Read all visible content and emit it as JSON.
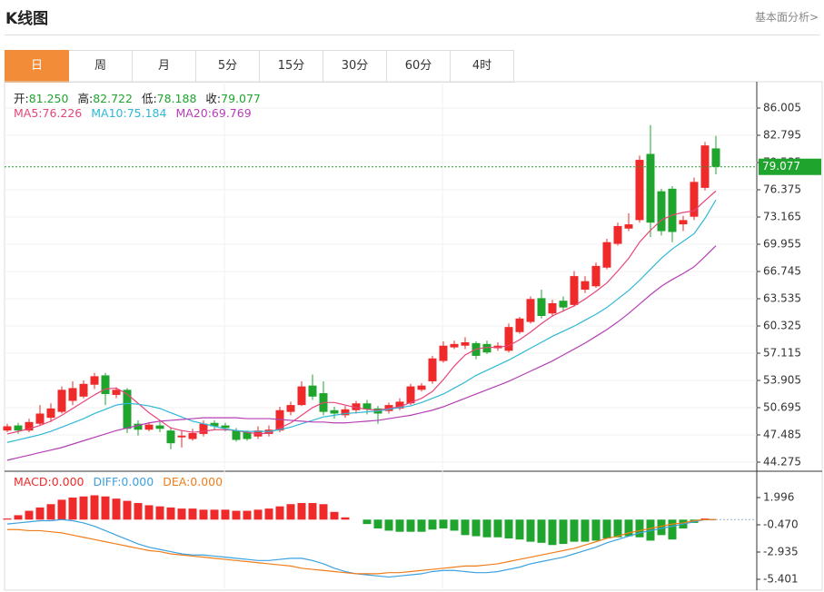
{
  "header": {
    "title": "K线图",
    "link": "基本面分析>"
  },
  "tabs": {
    "items": [
      "日",
      "周",
      "月",
      "5分",
      "15分",
      "30分",
      "60分",
      "4时"
    ],
    "active": 0
  },
  "chart_data": [
    {
      "type": "candlestick",
      "summary": [
        {
          "name": "开:",
          "value": {
            "value": 81.25,
            "label": "81.250"
          }
        },
        {
          "name": "高:",
          "value": 82.722
        },
        {
          "name": "低:",
          "value": 78.188
        },
        {
          "name": "收:",
          "value": 79.077
        }
      ],
      "up_color": "#ee2a2a",
      "down_color": "#1fa52d",
      "open": [
        48.0,
        48.6,
        48.0,
        48.8,
        49.5,
        50.2,
        51.5,
        52.0,
        53.4,
        54.5,
        52.2,
        52.8,
        48.8,
        48.1,
        48.6,
        48.0,
        47.2,
        47.0,
        47.6,
        48.9,
        48.6,
        48.0,
        47.8,
        47.3,
        47.6,
        48.0,
        50.2,
        51.0,
        53.3,
        52.4,
        50.4,
        49.8,
        50.4,
        51.2,
        50.6,
        50.3,
        50.6,
        51.2,
        52.8,
        53.8,
        56.2,
        57.8,
        58.0,
        58.3,
        58.2,
        57.7,
        57.4,
        59.6,
        60.8,
        63.6,
        61.8,
        63.3,
        62.8,
        64.6,
        65.0,
        67.2,
        70.0,
        71.8,
        72.8,
        80.6,
        76.2,
        76.5,
        72.3,
        73.2,
        76.6,
        81.25
      ],
      "high": [
        48.8,
        48.9,
        49.4,
        51.0,
        51.2,
        53.2,
        53.8,
        53.9,
        54.8,
        54.8,
        53.1,
        53.0,
        49.2,
        49.0,
        49.0,
        48.4,
        48.0,
        48.2,
        49.2,
        49.2,
        48.9,
        48.3,
        48.0,
        48.5,
        48.6,
        50.8,
        51.4,
        53.8,
        54.6,
        53.8,
        50.8,
        50.9,
        51.5,
        51.6,
        50.9,
        51.3,
        51.8,
        53.5,
        53.6,
        56.8,
        58.5,
        58.6,
        59.0,
        58.5,
        58.6,
        58.4,
        60.6,
        61.4,
        63.8,
        64.6,
        63.4,
        63.8,
        66.8,
        66.2,
        67.8,
        70.6,
        72.5,
        73.6,
        80.4,
        84.0,
        76.5,
        76.8,
        73.3,
        77.8,
        82.0,
        82.722
      ],
      "low": [
        47.8,
        47.6,
        47.8,
        48.6,
        49.0,
        50.0,
        51.0,
        51.8,
        52.9,
        51.0,
        51.8,
        47.7,
        47.4,
        47.9,
        47.8,
        45.8,
        46.0,
        46.8,
        47.3,
        48.1,
        47.9,
        46.7,
        46.8,
        47.0,
        47.3,
        47.8,
        49.8,
        50.9,
        51.6,
        49.8,
        49.4,
        49.5,
        50.0,
        49.9,
        48.8,
        50.0,
        50.4,
        51.0,
        52.6,
        53.5,
        56.0,
        57.6,
        57.6,
        56.4,
        57.0,
        57.4,
        57.2,
        59.4,
        60.6,
        61.2,
        61.4,
        62.0,
        62.6,
        64.2,
        64.8,
        67.0,
        69.8,
        71.5,
        72.5,
        70.8,
        71.0,
        70.2,
        71.5,
        72.8,
        76.3,
        78.188
      ],
      "close": [
        48.5,
        48.0,
        49.0,
        50.0,
        50.6,
        52.8,
        53.0,
        53.5,
        54.4,
        52.3,
        52.8,
        48.2,
        48.1,
        48.7,
        48.2,
        46.5,
        47.4,
        47.7,
        48.8,
        48.5,
        48.3,
        46.9,
        47.0,
        48.0,
        48.1,
        50.4,
        51.0,
        53.2,
        52.0,
        50.2,
        50.0,
        50.5,
        51.2,
        50.5,
        50.0,
        51.0,
        51.4,
        53.2,
        53.3,
        56.5,
        58.0,
        58.2,
        58.4,
        56.8,
        57.2,
        58.0,
        60.2,
        61.2,
        63.5,
        61.5,
        63.0,
        62.5,
        66.2,
        65.6,
        67.4,
        70.2,
        72.1,
        72.3,
        79.9,
        72.5,
        71.5,
        71.4,
        72.8,
        77.3,
        81.6,
        79.077
      ],
      "last_price": {
        "value": 79.077,
        "label": "79.077"
      },
      "series": [
        {
          "name": "MA5:",
          "color": "#e8457a",
          "values": [
            47.6,
            47.9,
            48.2,
            48.6,
            49.1,
            49.8,
            50.6,
            51.4,
            52.2,
            52.9,
            53.0,
            52.3,
            51.2,
            50.1,
            49.2,
            48.3,
            48.0,
            47.8,
            47.9,
            48.1,
            48.1,
            48.0,
            47.8,
            47.6,
            47.7,
            48.3,
            48.9,
            49.8,
            50.7,
            51.3,
            51.3,
            51.0,
            50.7,
            50.5,
            50.4,
            50.6,
            50.8,
            51.3,
            51.8,
            52.6,
            54.0,
            55.6,
            56.9,
            57.6,
            57.8,
            57.8,
            58.0,
            58.7,
            59.6,
            60.6,
            61.5,
            62.1,
            62.7,
            63.5,
            64.4,
            65.4,
            66.8,
            68.3,
            70.2,
            71.6,
            72.8,
            73.4,
            73.7,
            73.9,
            75.1,
            76.226
          ]
        },
        {
          "name": "MA10:",
          "color": "#2fb8d6",
          "values": [
            46.6,
            46.9,
            47.2,
            47.5,
            47.9,
            48.4,
            48.9,
            49.4,
            50.0,
            50.5,
            51.0,
            51.2,
            51.1,
            50.9,
            50.6,
            50.1,
            49.6,
            49.1,
            48.8,
            48.5,
            48.2,
            48.0,
            47.9,
            47.9,
            47.9,
            48.1,
            48.4,
            48.8,
            49.2,
            49.6,
            49.8,
            50.0,
            50.1,
            50.2,
            50.3,
            50.5,
            50.7,
            50.9,
            51.3,
            51.8,
            52.3,
            53.0,
            53.7,
            54.5,
            55.1,
            55.7,
            56.3,
            57.0,
            57.7,
            58.4,
            59.1,
            59.7,
            60.3,
            61.0,
            61.7,
            62.5,
            63.5,
            64.5,
            65.7,
            67.0,
            68.3,
            69.4,
            70.3,
            71.2,
            73.0,
            75.184
          ]
        },
        {
          "name": "MA20:",
          "color": "#b53fb5",
          "values": [
            44.5,
            44.8,
            45.1,
            45.4,
            45.7,
            46.0,
            46.4,
            46.8,
            47.2,
            47.6,
            48.0,
            48.3,
            48.6,
            48.9,
            49.1,
            49.2,
            49.3,
            49.4,
            49.5,
            49.5,
            49.5,
            49.5,
            49.4,
            49.4,
            49.4,
            49.3,
            49.2,
            49.1,
            49.0,
            49.0,
            48.9,
            48.9,
            49.0,
            49.1,
            49.2,
            49.4,
            49.6,
            49.8,
            50.1,
            50.4,
            50.8,
            51.3,
            51.8,
            52.3,
            52.8,
            53.3,
            53.8,
            54.4,
            55.0,
            55.6,
            56.2,
            56.9,
            57.6,
            58.3,
            59.1,
            59.9,
            60.8,
            61.8,
            62.9,
            64.0,
            65.0,
            65.8,
            66.5,
            67.3,
            68.5,
            69.769
          ]
        }
      ],
      "ylim": [
        43.31,
        88.894
      ],
      "yticks": [
        86.005,
        82.795,
        79.585,
        76.375,
        73.165,
        69.955,
        66.745,
        63.535,
        60.325,
        57.115,
        53.905,
        50.695,
        47.485,
        44.275
      ],
      "grid": true
    },
    {
      "type": "macd",
      "series": [
        {
          "name": "MACD:",
          "color": "#ee2a2a",
          "negative_color": "#1fa52d",
          "last_label": "0.000",
          "values": [
            0.1,
            0.4,
            0.8,
            1.1,
            1.4,
            1.8,
            2.0,
            2.1,
            2.2,
            2.1,
            1.9,
            1.7,
            1.5,
            1.3,
            1.2,
            1.1,
            1.0,
            1.0,
            0.9,
            0.9,
            0.9,
            0.8,
            0.8,
            0.9,
            1.0,
            1.2,
            1.4,
            1.5,
            1.5,
            1.4,
            0.7,
            0.2,
            0.0,
            -0.4,
            -0.8,
            -1.0,
            -1.1,
            -1.1,
            -1.1,
            -0.9,
            -0.8,
            -1.0,
            -1.4,
            -1.5,
            -1.6,
            -1.6,
            -1.7,
            -1.8,
            -2.0,
            -2.1,
            -2.3,
            -2.2,
            -2.0,
            -2.0,
            -1.9,
            -1.7,
            -1.6,
            -1.5,
            -1.6,
            -1.9,
            -1.4,
            -1.8,
            -0.8,
            -0.3,
            0.1,
            0.0
          ]
        },
        {
          "name": "DIFF:",
          "color": "#3ba1e0",
          "last_label": "0.000",
          "values": [
            -0.4,
            -0.3,
            -0.2,
            -0.1,
            -0.1,
            0.0,
            -0.1,
            -0.3,
            -0.6,
            -1.0,
            -1.4,
            -1.8,
            -2.2,
            -2.5,
            -2.7,
            -2.9,
            -3.1,
            -3.2,
            -3.2,
            -3.3,
            -3.4,
            -3.5,
            -3.6,
            -3.7,
            -3.7,
            -3.6,
            -3.5,
            -3.5,
            -3.7,
            -4.0,
            -4.4,
            -4.7,
            -4.9,
            -5.0,
            -5.1,
            -5.2,
            -5.1,
            -5.0,
            -4.9,
            -4.7,
            -4.6,
            -4.6,
            -4.7,
            -4.8,
            -4.8,
            -4.7,
            -4.5,
            -4.3,
            -4.0,
            -3.8,
            -3.6,
            -3.4,
            -3.1,
            -2.8,
            -2.5,
            -2.1,
            -1.8,
            -1.5,
            -1.2,
            -1.0,
            -0.8,
            -0.6,
            -0.4,
            -0.2,
            0.0,
            0.0
          ]
        },
        {
          "name": "DEA:",
          "color": "#f07d1a",
          "last_label": "0.000",
          "values": [
            -0.9,
            -0.9,
            -1.0,
            -1.0,
            -1.1,
            -1.2,
            -1.4,
            -1.6,
            -1.8,
            -2.0,
            -2.2,
            -2.4,
            -2.6,
            -2.8,
            -2.9,
            -3.1,
            -3.2,
            -3.3,
            -3.4,
            -3.5,
            -3.6,
            -3.7,
            -3.8,
            -3.9,
            -4.0,
            -4.1,
            -4.2,
            -4.4,
            -4.5,
            -4.6,
            -4.7,
            -4.8,
            -4.9,
            -4.9,
            -4.9,
            -4.8,
            -4.8,
            -4.7,
            -4.6,
            -4.5,
            -4.4,
            -4.3,
            -4.2,
            -4.2,
            -4.1,
            -4.0,
            -3.8,
            -3.6,
            -3.4,
            -3.2,
            -3.0,
            -2.8,
            -2.6,
            -2.3,
            -2.0,
            -1.7,
            -1.5,
            -1.2,
            -1.0,
            -0.8,
            -0.6,
            -0.4,
            -0.3,
            -0.1,
            0.0,
            0.0
          ]
        }
      ],
      "ylim": [
        -6.387,
        4.215
      ],
      "yticks": [
        1.996,
        {
          "value": -0.47,
          "label": "-0.470"
        },
        -2.935,
        -5.401
      ]
    }
  ]
}
